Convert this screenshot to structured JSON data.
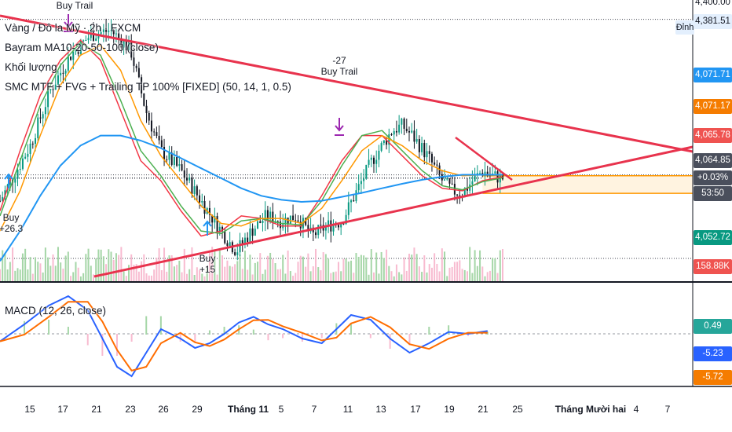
{
  "legend": {
    "symbol": "Vàng / Đô la Mỹ · 2h · FXCM",
    "ma": "Bayram MA10-20-50-100 (close)",
    "volume": "Khối lượng",
    "smc": "SMC MTF + FVG + Trailing TP 100% [FIXED] (50, 14, 1, 0.5)",
    "macd": "MACD (12, 26, close)"
  },
  "price_badges": [
    {
      "text": "4,381.51",
      "bg": "#e3effd",
      "fg": "#131722",
      "y": 4381.51
    },
    {
      "text": "4,071.71",
      "bg": "#2196f3",
      "fg": "#ffffff",
      "y": 4071.71
    },
    {
      "text": "4,071.17",
      "bg": "#f57c00",
      "fg": "#ffffff",
      "y": 4071.17
    },
    {
      "text": "4,065.78",
      "bg": "#ef5350",
      "fg": "#ffffff",
      "y": 4065.78
    },
    {
      "text": "4,064.85",
      "bg": "#4a4f5c",
      "fg": "#ffffff",
      "y": 4064.85
    },
    {
      "text": "+0.03%",
      "bg": "#4a4f5c",
      "fg": "#ffffff"
    },
    {
      "text": "53:50",
      "bg": "#4a4f5c",
      "fg": "#ffffff"
    },
    {
      "text": "4,052.72",
      "bg": "#089981",
      "fg": "#ffffff",
      "y": 4052.72
    },
    {
      "text": "158.88K",
      "bg": "#ef5350",
      "fg": "#ffffff"
    }
  ],
  "top_badge_text": "4,400.00",
  "dinh_label": "Đỉnh",
  "macd_badges": [
    {
      "text": "0.49",
      "bg": "#26a69a",
      "fg": "#ffffff"
    },
    {
      "text": "-5.23",
      "bg": "#2962ff",
      "fg": "#ffffff"
    },
    {
      "text": "-5.72",
      "bg": "#f57c00",
      "fg": "#ffffff"
    }
  ],
  "signals": [
    {
      "lines": [
        "Buy Trail"
      ],
      "color": "#9c27b0"
    },
    {
      "lines": [
        "-27",
        "Buy Trail"
      ],
      "color": "#9c27b0"
    },
    {
      "lines": [
        "Buy",
        "+26.3"
      ],
      "color": "#2196f3"
    },
    {
      "lines": [
        "Buy",
        "+15"
      ],
      "color": "#2196f3"
    }
  ],
  "colors": {
    "trendline": "#e8334d",
    "ma10": "#f23645",
    "ma20": "#4caf50",
    "ma50": "#ff9800",
    "ma100": "#2196f3",
    "macd_line": "#2962ff",
    "signal_line": "#ff6d00",
    "candle_down": "#131722",
    "volume_up": "#a5d6a7",
    "volume_down": "#f8bbd0",
    "zone_fill": "#fff3e0",
    "zone_edge": "#ff9800"
  },
  "chart_data": {
    "type": "candlestick",
    "symbol": "XAU/USD",
    "timeframe": "2h",
    "x_tick_labels": [
      "15",
      "17",
      "21",
      "23",
      "26",
      "29",
      "Tháng 11",
      "5",
      "7",
      "11",
      "13",
      "17",
      "19",
      "21",
      "25",
      "Tháng Mười hai",
      "4",
      "7"
    ],
    "price_range": [
      3860,
      4420
    ],
    "close_path": [
      [
        0,
        4020
      ],
      [
        6,
        4130
      ],
      [
        10,
        4240
      ],
      [
        14,
        4310
      ],
      [
        18,
        4350
      ],
      [
        22,
        4360
      ],
      [
        26,
        4320
      ],
      [
        29,
        4200
      ],
      [
        32,
        4120
      ],
      [
        36,
        4080
      ],
      [
        40,
        4020
      ],
      [
        44,
        3960
      ],
      [
        47,
        3920
      ],
      [
        50,
        3960
      ],
      [
        53,
        3990
      ],
      [
        56,
        3980
      ],
      [
        59,
        3990
      ],
      [
        62,
        3950
      ],
      [
        65,
        3970
      ],
      [
        68,
        3980
      ],
      [
        71,
        4040
      ],
      [
        74,
        4100
      ],
      [
        76,
        4130
      ],
      [
        78,
        4160
      ],
      [
        80,
        4170
      ],
      [
        82,
        4150
      ],
      [
        85,
        4110
      ],
      [
        88,
        4060
      ],
      [
        90,
        4040
      ],
      [
        92,
        4035
      ],
      [
        94,
        4060
      ],
      [
        96,
        4080
      ],
      [
        98,
        4070
      ],
      [
        100,
        4065
      ]
    ],
    "ma_series": [
      {
        "name": "MA10",
        "values": [
          4000,
          4120,
          4230,
          4300,
          4340,
          4300,
          4200,
          4100,
          4060,
          4000,
          3950,
          3960,
          3990,
          3985,
          3970,
          3970,
          4030,
          4100,
          4150,
          4150,
          4110,
          4070,
          4045,
          4040,
          4060,
          4068
        ]
      },
      {
        "name": "MA20",
        "values": [
          3990,
          4100,
          4210,
          4290,
          4335,
          4310,
          4220,
          4120,
          4070,
          4010,
          3960,
          3955,
          3980,
          3985,
          3975,
          3972,
          4020,
          4090,
          4150,
          4160,
          4120,
          4080,
          4050,
          4042,
          4058,
          4066
        ]
      },
      {
        "name": "MA50",
        "values": [
          3960,
          4040,
          4150,
          4250,
          4310,
          4330,
          4280,
          4180,
          4110,
          4060,
          4010,
          3975,
          3970,
          3985,
          3985,
          3975,
          4005,
          4060,
          4120,
          4150,
          4130,
          4100,
          4080,
          4070,
          4072,
          4071
        ]
      },
      {
        "name": "MA100",
        "values": [
          3900,
          3960,
          4030,
          4090,
          4130,
          4150,
          4150,
          4140,
          4125,
          4105,
          4085,
          4065,
          4045,
          4030,
          4022,
          4018,
          4020,
          4028,
          4036,
          4045,
          4054,
          4062,
          4068,
          4072,
          4072,
          4072
        ]
      }
    ],
    "volume_last": "158.88K",
    "macd": {
      "last_histogram": 0.49,
      "last_macd": -5.23,
      "last_signal": -5.72
    }
  }
}
